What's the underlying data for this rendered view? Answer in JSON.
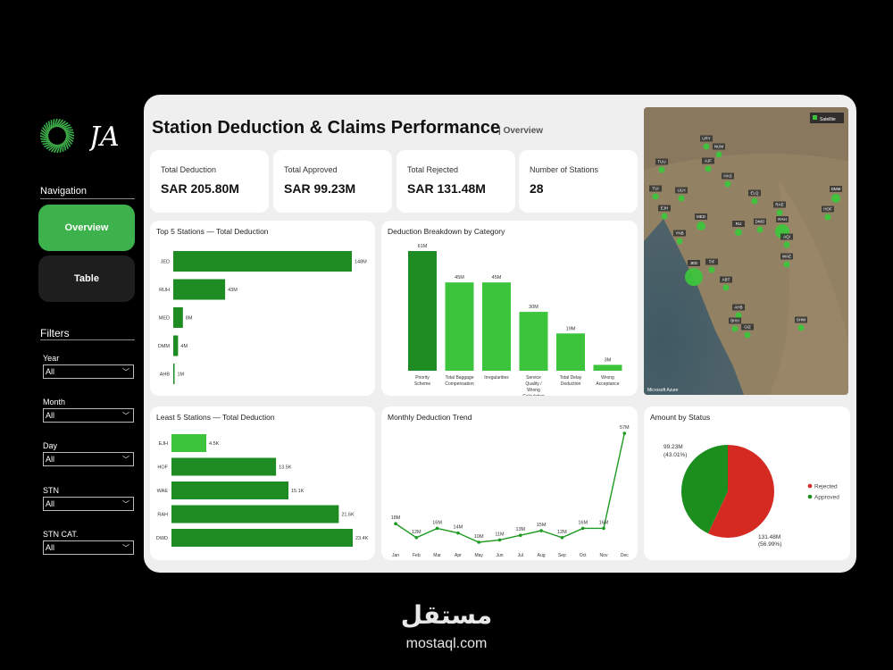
{
  "brand": {
    "logo_text": "JA"
  },
  "sidebar": {
    "navigation_title": "Navigation",
    "nav": [
      {
        "label": "Overview"
      },
      {
        "label": "Table"
      }
    ],
    "filters_title": "Filters",
    "filters": [
      {
        "label": "Year",
        "value": "All"
      },
      {
        "label": "Month",
        "value": "All"
      },
      {
        "label": "Day",
        "value": "All"
      },
      {
        "label": "STN",
        "value": "All"
      },
      {
        "label": "STN CAT.",
        "value": "All"
      }
    ]
  },
  "header": {
    "title": "Station Deduction & Claims Performance",
    "subtitle": "| Overview"
  },
  "kpis": [
    {
      "label": "Total Deduction",
      "value": "SAR 205.80M"
    },
    {
      "label": "Total Approved",
      "value": "SAR 99.23M"
    },
    {
      "label": "Total Rejected",
      "value": "SAR 131.48M"
    },
    {
      "label": "Number of Stations",
      "value": "28"
    }
  ],
  "colors": {
    "accent": "#3db14b",
    "bar_dark": "#1e8c22",
    "bar_light": "#3cc43c",
    "rejected": "#d42a22",
    "approved": "#1b8e1e"
  },
  "map": {
    "legend": "Satellite",
    "attribution": "Microsoft Azure",
    "stations": [
      "URY",
      "TUU",
      "NUM",
      "AJF",
      "HAS",
      "TUI",
      "ULH",
      "ELQ",
      "EJH",
      "RAE",
      "HOF",
      "DMM",
      "MED",
      "RIJ",
      "DWD",
      "RAH",
      "YNB",
      "AQI",
      "WAE",
      "JED",
      "TIF",
      "ABT",
      "GIZ",
      "AHB",
      "SHW",
      "BHH"
    ]
  },
  "chart_data": [
    {
      "type": "bar",
      "orientation": "horizontal",
      "title": "Top 5 Stations — Total Deduction",
      "categories": [
        "JED",
        "RUH",
        "MED",
        "DMM",
        "AHB"
      ],
      "values": [
        148,
        43,
        8,
        4,
        1
      ],
      "labels": [
        "148M",
        "43M",
        "8M",
        "4M",
        "1M"
      ]
    },
    {
      "type": "bar",
      "title": "Deduction Breakdown by Category",
      "categories": [
        "Priority Scheme",
        "Total Baggage Compensation",
        "Irregularities",
        "Service Quality / Wrong Calculation",
        "Total Delay Deduction",
        "Wrong Acceptance"
      ],
      "values": [
        61,
        45,
        45,
        30,
        19,
        3
      ],
      "labels": [
        "61M",
        "45M",
        "45M",
        "30M",
        "19M",
        "3M"
      ]
    },
    {
      "type": "bar",
      "orientation": "horizontal",
      "title": "Least 5 Stations — Total Deduction",
      "categories": [
        "EJH",
        "HOF",
        "WAE",
        "RAH",
        "DWD"
      ],
      "values": [
        4.5,
        13.5,
        15.1,
        21.6,
        23.4
      ],
      "labels": [
        "4.5K",
        "13.5K",
        "15.1K",
        "21.6K",
        "23.4K"
      ]
    },
    {
      "type": "line",
      "title": "Monthly Deduction Trend",
      "x": [
        "Jan",
        "Feb",
        "Mar",
        "Apr",
        "May",
        "Jun",
        "Jul",
        "Aug",
        "Sep",
        "Oct",
        "Nov",
        "Dec"
      ],
      "values": [
        18,
        12,
        16,
        14,
        10,
        11,
        13,
        15,
        12,
        16,
        16,
        57
      ],
      "labels": [
        "18M",
        "12M",
        "16M",
        "14M",
        "10M",
        "11M",
        "13M",
        "15M",
        "12M",
        "16M",
        "16M",
        "57M"
      ]
    },
    {
      "type": "pie",
      "title": "Amount by Status",
      "series": [
        {
          "name": "Rejected",
          "value": 131.48,
          "label": "131.48M",
          "pct": "(56.99%)"
        },
        {
          "name": "Approved",
          "value": 99.23,
          "label": "99.23M",
          "pct": "(43.01%)"
        }
      ]
    }
  ],
  "watermark": {
    "arabic": "مستقل",
    "latin": "mostaql.com"
  }
}
